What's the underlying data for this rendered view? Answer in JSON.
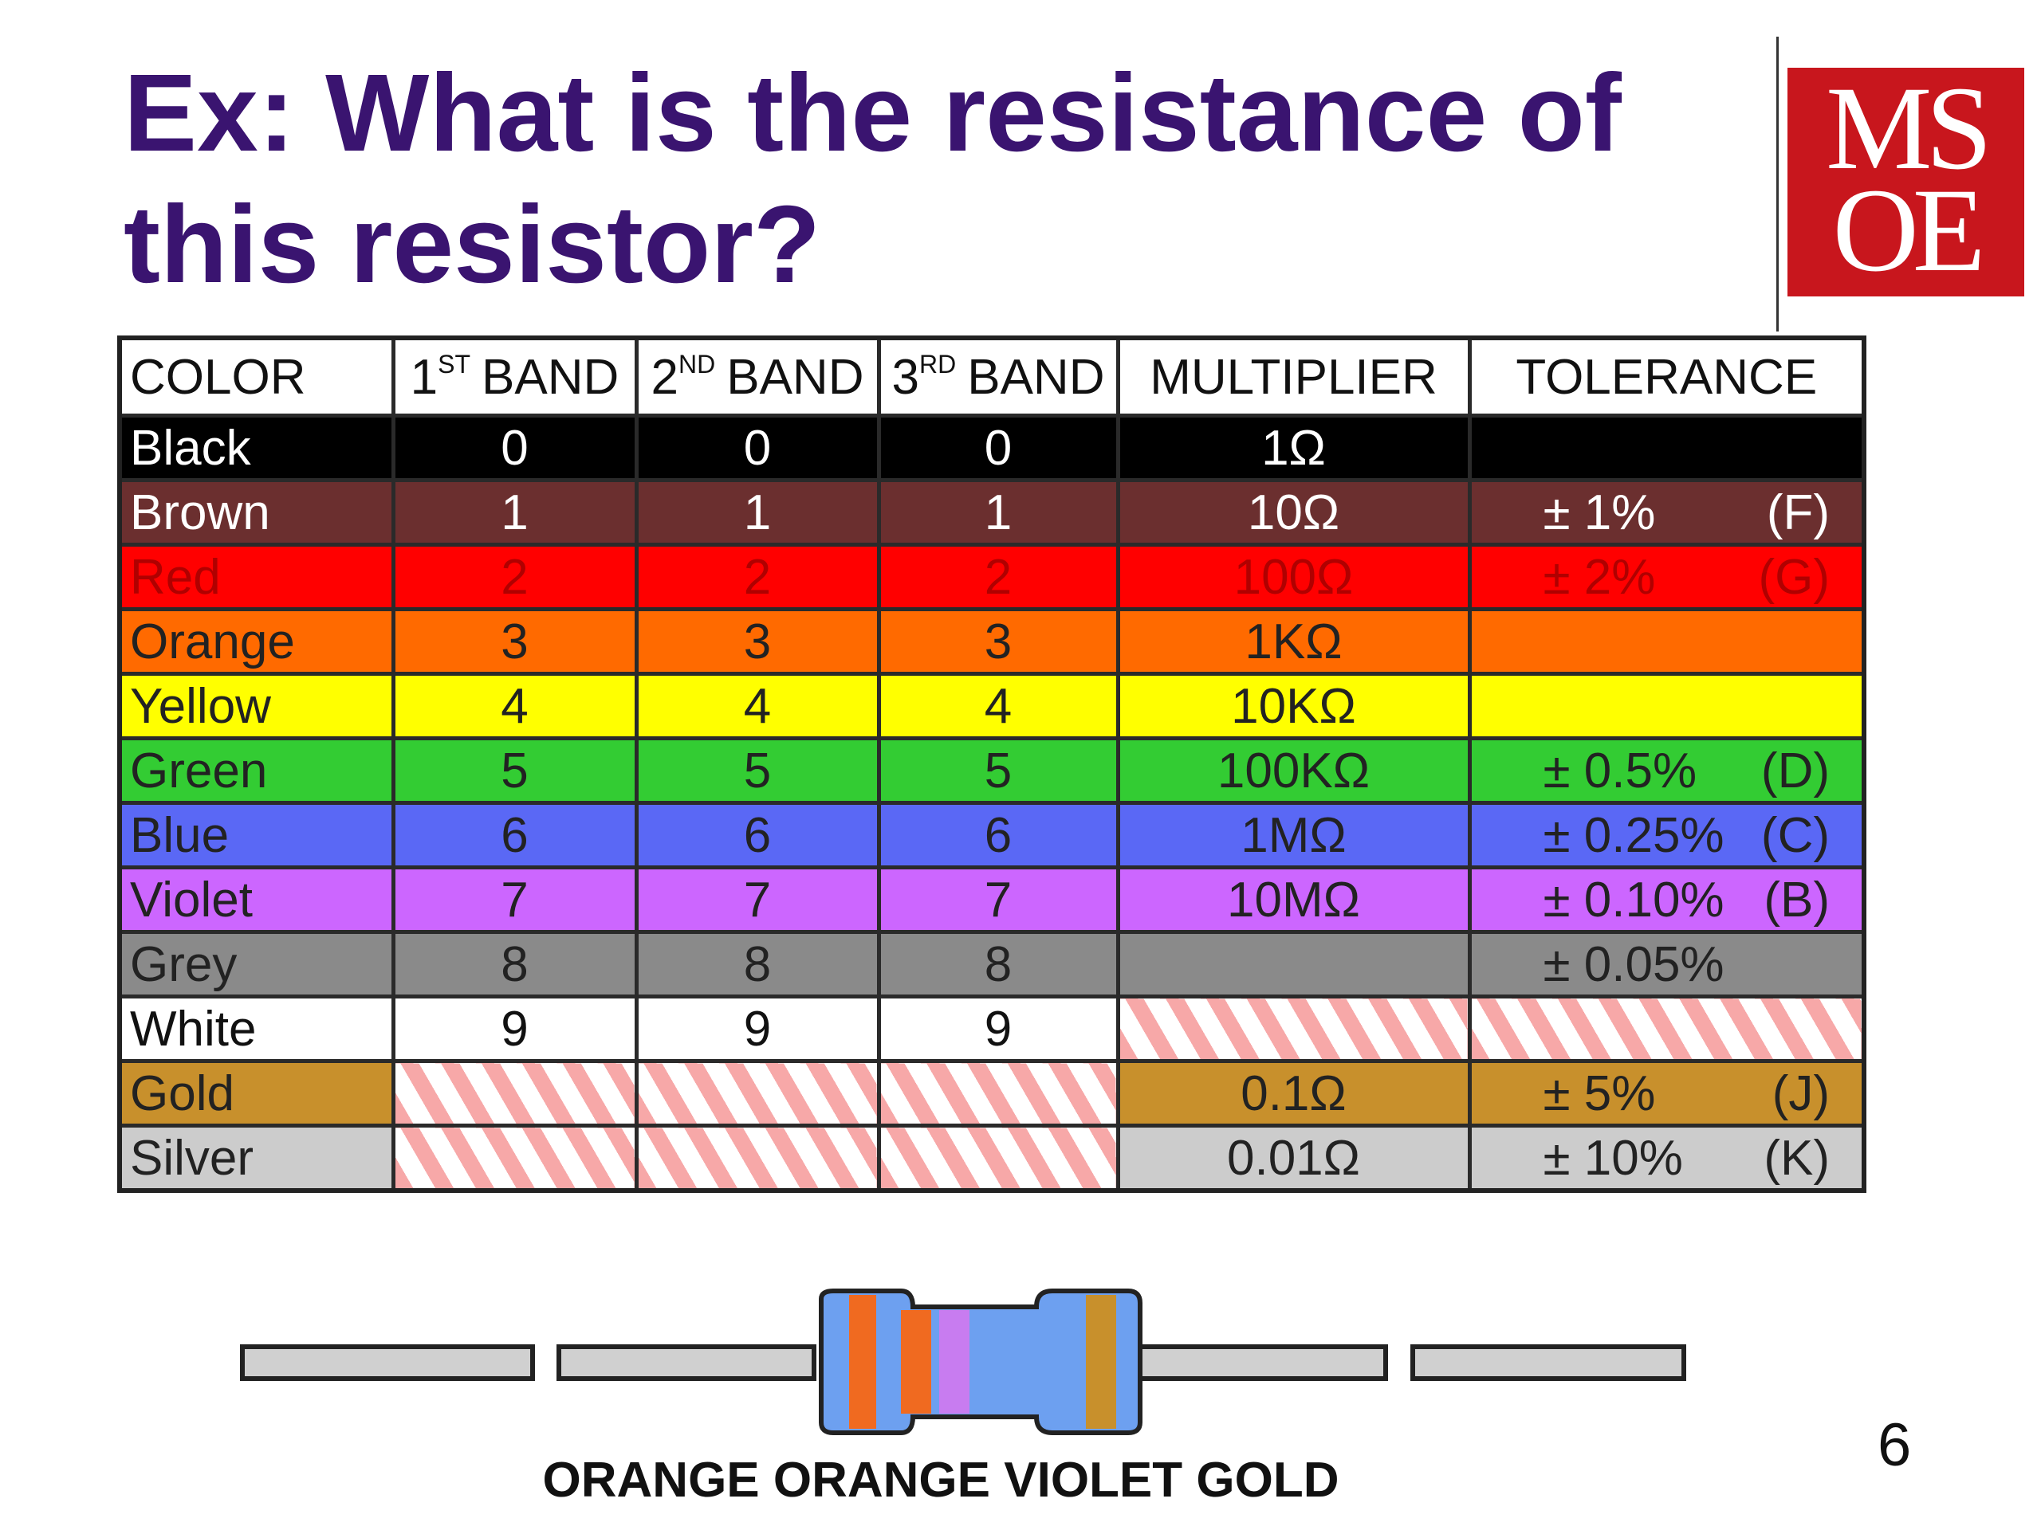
{
  "title": [
    "Ex: What is the resistance of",
    "this resistor?"
  ],
  "logo": [
    "MS",
    "OE"
  ],
  "table": {
    "header": [
      {
        "text": "COLOR"
      },
      {
        "text": "1",
        "sup": "ST",
        "rest": "BAND"
      },
      {
        "text": "2",
        "sup": "ND",
        "rest": "BAND"
      },
      {
        "text": "3",
        "sup": "RD",
        "rest": "BAND"
      },
      {
        "text": "MULTIPLIER"
      },
      {
        "text": "TOLERANCE"
      }
    ],
    "rows": [
      {
        "color": "Black",
        "b1": 0,
        "b2": 0,
        "b3": 0,
        "multiplier": "1Ω"
      },
      {
        "color": "Brown",
        "b1": 1,
        "b2": 1,
        "b3": 1,
        "multiplier": "10Ω",
        "tolerance": "± 1%",
        "code": "(F)"
      },
      {
        "color": "Red",
        "b1": 2,
        "b2": 2,
        "b3": 2,
        "multiplier": "100Ω",
        "tolerance": "± 2%",
        "code": "(G)"
      },
      {
        "color": "Orange",
        "b1": 3,
        "b2": 3,
        "b3": 3,
        "multiplier": "1KΩ"
      },
      {
        "color": "Yellow",
        "b1": 4,
        "b2": 4,
        "b3": 4,
        "multiplier": "10KΩ"
      },
      {
        "color": "Green",
        "b1": 5,
        "b2": 5,
        "b3": 5,
        "multiplier": "100KΩ",
        "tolerance": "± 0.5%",
        "code": "(D)"
      },
      {
        "color": "Blue",
        "b1": 6,
        "b2": 6,
        "b3": 6,
        "multiplier": "1MΩ",
        "tolerance": "± 0.25%",
        "code": "(C)"
      },
      {
        "color": "Violet",
        "b1": 7,
        "b2": 7,
        "b3": 7,
        "multiplier": "10MΩ",
        "tolerance": "± 0.10%",
        "code": "(B)"
      },
      {
        "color": "Grey",
        "b1": 8,
        "b2": 8,
        "b3": 8,
        "tolerance": "± 0.05%"
      },
      {
        "color": "White",
        "b1": 9,
        "b2": 9,
        "b3": 9
      },
      {
        "color": "Gold",
        "multiplier": "0.1Ω",
        "tolerance": "± 5%",
        "code": "(J)"
      },
      {
        "color": "Silver",
        "multiplier": "0.01Ω",
        "tolerance": "± 10%",
        "code": "(K)"
      }
    ]
  },
  "caption": "ORANGE ORANGE VIOLET GOLD",
  "page_number": "6"
}
